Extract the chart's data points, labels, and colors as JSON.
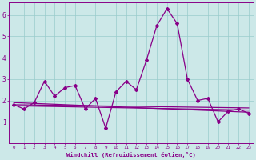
{
  "xlabel": "Windchill (Refroidissement éolien,°C)",
  "bg_color": "#cce8e8",
  "line_color": "#880088",
  "grid_color": "#99cccc",
  "x_values": [
    0,
    1,
    2,
    3,
    4,
    5,
    6,
    7,
    8,
    9,
    10,
    11,
    12,
    13,
    14,
    15,
    16,
    17,
    18,
    19,
    20,
    21,
    22,
    23
  ],
  "line1": [
    1.8,
    1.6,
    1.9,
    2.9,
    2.2,
    2.6,
    2.7,
    1.6,
    2.1,
    0.7,
    2.4,
    2.9,
    2.5,
    3.9,
    5.5,
    6.3,
    5.6,
    3.0,
    2.0,
    2.1,
    1.0,
    1.5,
    1.6,
    1.4
  ],
  "trend1_x": [
    0,
    23
  ],
  "trend1_y": [
    1.9,
    1.45
  ],
  "trend2_x": [
    0,
    23
  ],
  "trend2_y": [
    1.75,
    1.55
  ],
  "trend3_x": [
    0,
    23
  ],
  "trend3_y": [
    1.8,
    1.65
  ],
  "ylim": [
    0,
    6.6
  ],
  "xlim": [
    -0.5,
    23.5
  ]
}
